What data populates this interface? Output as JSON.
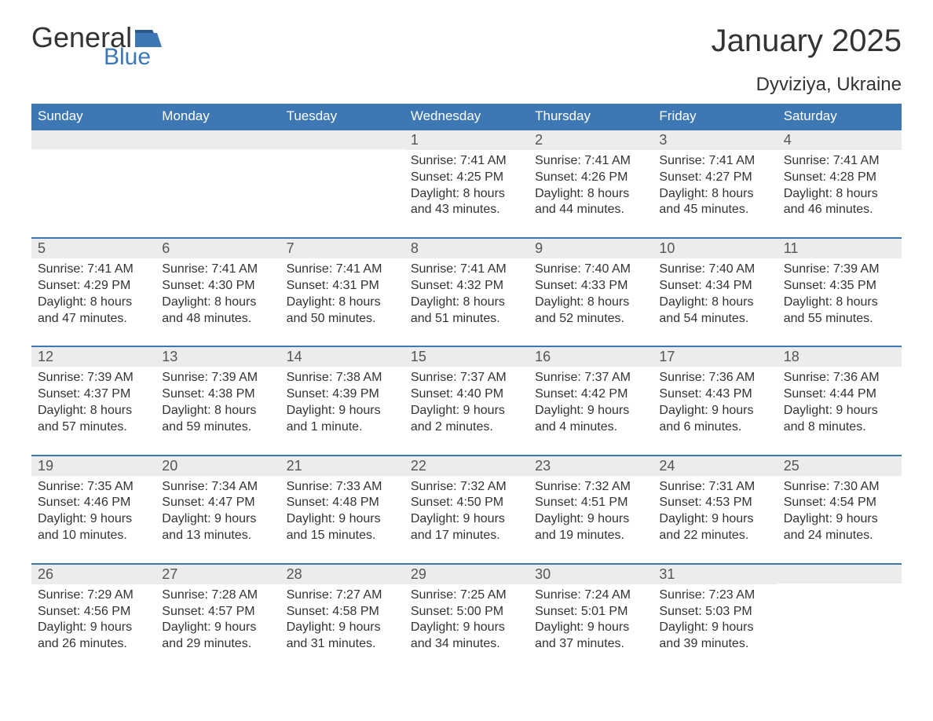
{
  "colors": {
    "header_bg": "#3d77b4",
    "header_text": "#ffffff",
    "daynum_bg": "#ececec",
    "daynum_text": "#555555",
    "body_text": "#333333",
    "row_border": "#3d77b4",
    "page_bg": "#ffffff",
    "logo_blue": "#3d77b4"
  },
  "logo": {
    "text1": "General",
    "text2": "Blue"
  },
  "title": "January 2025",
  "location": "Dyviziya, Ukraine",
  "weekdays": [
    "Sunday",
    "Monday",
    "Tuesday",
    "Wednesday",
    "Thursday",
    "Friday",
    "Saturday"
  ],
  "weeks": [
    [
      null,
      null,
      null,
      {
        "n": "1",
        "sunrise": "Sunrise: 7:41 AM",
        "sunset": "Sunset: 4:25 PM",
        "day1": "Daylight: 8 hours",
        "day2": "and 43 minutes."
      },
      {
        "n": "2",
        "sunrise": "Sunrise: 7:41 AM",
        "sunset": "Sunset: 4:26 PM",
        "day1": "Daylight: 8 hours",
        "day2": "and 44 minutes."
      },
      {
        "n": "3",
        "sunrise": "Sunrise: 7:41 AM",
        "sunset": "Sunset: 4:27 PM",
        "day1": "Daylight: 8 hours",
        "day2": "and 45 minutes."
      },
      {
        "n": "4",
        "sunrise": "Sunrise: 7:41 AM",
        "sunset": "Sunset: 4:28 PM",
        "day1": "Daylight: 8 hours",
        "day2": "and 46 minutes."
      }
    ],
    [
      {
        "n": "5",
        "sunrise": "Sunrise: 7:41 AM",
        "sunset": "Sunset: 4:29 PM",
        "day1": "Daylight: 8 hours",
        "day2": "and 47 minutes."
      },
      {
        "n": "6",
        "sunrise": "Sunrise: 7:41 AM",
        "sunset": "Sunset: 4:30 PM",
        "day1": "Daylight: 8 hours",
        "day2": "and 48 minutes."
      },
      {
        "n": "7",
        "sunrise": "Sunrise: 7:41 AM",
        "sunset": "Sunset: 4:31 PM",
        "day1": "Daylight: 8 hours",
        "day2": "and 50 minutes."
      },
      {
        "n": "8",
        "sunrise": "Sunrise: 7:41 AM",
        "sunset": "Sunset: 4:32 PM",
        "day1": "Daylight: 8 hours",
        "day2": "and 51 minutes."
      },
      {
        "n": "9",
        "sunrise": "Sunrise: 7:40 AM",
        "sunset": "Sunset: 4:33 PM",
        "day1": "Daylight: 8 hours",
        "day2": "and 52 minutes."
      },
      {
        "n": "10",
        "sunrise": "Sunrise: 7:40 AM",
        "sunset": "Sunset: 4:34 PM",
        "day1": "Daylight: 8 hours",
        "day2": "and 54 minutes."
      },
      {
        "n": "11",
        "sunrise": "Sunrise: 7:39 AM",
        "sunset": "Sunset: 4:35 PM",
        "day1": "Daylight: 8 hours",
        "day2": "and 55 minutes."
      }
    ],
    [
      {
        "n": "12",
        "sunrise": "Sunrise: 7:39 AM",
        "sunset": "Sunset: 4:37 PM",
        "day1": "Daylight: 8 hours",
        "day2": "and 57 minutes."
      },
      {
        "n": "13",
        "sunrise": "Sunrise: 7:39 AM",
        "sunset": "Sunset: 4:38 PM",
        "day1": "Daylight: 8 hours",
        "day2": "and 59 minutes."
      },
      {
        "n": "14",
        "sunrise": "Sunrise: 7:38 AM",
        "sunset": "Sunset: 4:39 PM",
        "day1": "Daylight: 9 hours",
        "day2": "and 1 minute."
      },
      {
        "n": "15",
        "sunrise": "Sunrise: 7:37 AM",
        "sunset": "Sunset: 4:40 PM",
        "day1": "Daylight: 9 hours",
        "day2": "and 2 minutes."
      },
      {
        "n": "16",
        "sunrise": "Sunrise: 7:37 AM",
        "sunset": "Sunset: 4:42 PM",
        "day1": "Daylight: 9 hours",
        "day2": "and 4 minutes."
      },
      {
        "n": "17",
        "sunrise": "Sunrise: 7:36 AM",
        "sunset": "Sunset: 4:43 PM",
        "day1": "Daylight: 9 hours",
        "day2": "and 6 minutes."
      },
      {
        "n": "18",
        "sunrise": "Sunrise: 7:36 AM",
        "sunset": "Sunset: 4:44 PM",
        "day1": "Daylight: 9 hours",
        "day2": "and 8 minutes."
      }
    ],
    [
      {
        "n": "19",
        "sunrise": "Sunrise: 7:35 AM",
        "sunset": "Sunset: 4:46 PM",
        "day1": "Daylight: 9 hours",
        "day2": "and 10 minutes."
      },
      {
        "n": "20",
        "sunrise": "Sunrise: 7:34 AM",
        "sunset": "Sunset: 4:47 PM",
        "day1": "Daylight: 9 hours",
        "day2": "and 13 minutes."
      },
      {
        "n": "21",
        "sunrise": "Sunrise: 7:33 AM",
        "sunset": "Sunset: 4:48 PM",
        "day1": "Daylight: 9 hours",
        "day2": "and 15 minutes."
      },
      {
        "n": "22",
        "sunrise": "Sunrise: 7:32 AM",
        "sunset": "Sunset: 4:50 PM",
        "day1": "Daylight: 9 hours",
        "day2": "and 17 minutes."
      },
      {
        "n": "23",
        "sunrise": "Sunrise: 7:32 AM",
        "sunset": "Sunset: 4:51 PM",
        "day1": "Daylight: 9 hours",
        "day2": "and 19 minutes."
      },
      {
        "n": "24",
        "sunrise": "Sunrise: 7:31 AM",
        "sunset": "Sunset: 4:53 PM",
        "day1": "Daylight: 9 hours",
        "day2": "and 22 minutes."
      },
      {
        "n": "25",
        "sunrise": "Sunrise: 7:30 AM",
        "sunset": "Sunset: 4:54 PM",
        "day1": "Daylight: 9 hours",
        "day2": "and 24 minutes."
      }
    ],
    [
      {
        "n": "26",
        "sunrise": "Sunrise: 7:29 AM",
        "sunset": "Sunset: 4:56 PM",
        "day1": "Daylight: 9 hours",
        "day2": "and 26 minutes."
      },
      {
        "n": "27",
        "sunrise": "Sunrise: 7:28 AM",
        "sunset": "Sunset: 4:57 PM",
        "day1": "Daylight: 9 hours",
        "day2": "and 29 minutes."
      },
      {
        "n": "28",
        "sunrise": "Sunrise: 7:27 AM",
        "sunset": "Sunset: 4:58 PM",
        "day1": "Daylight: 9 hours",
        "day2": "and 31 minutes."
      },
      {
        "n": "29",
        "sunrise": "Sunrise: 7:25 AM",
        "sunset": "Sunset: 5:00 PM",
        "day1": "Daylight: 9 hours",
        "day2": "and 34 minutes."
      },
      {
        "n": "30",
        "sunrise": "Sunrise: 7:24 AM",
        "sunset": "Sunset: 5:01 PM",
        "day1": "Daylight: 9 hours",
        "day2": "and 37 minutes."
      },
      {
        "n": "31",
        "sunrise": "Sunrise: 7:23 AM",
        "sunset": "Sunset: 5:03 PM",
        "day1": "Daylight: 9 hours",
        "day2": "and 39 minutes."
      },
      null
    ]
  ]
}
